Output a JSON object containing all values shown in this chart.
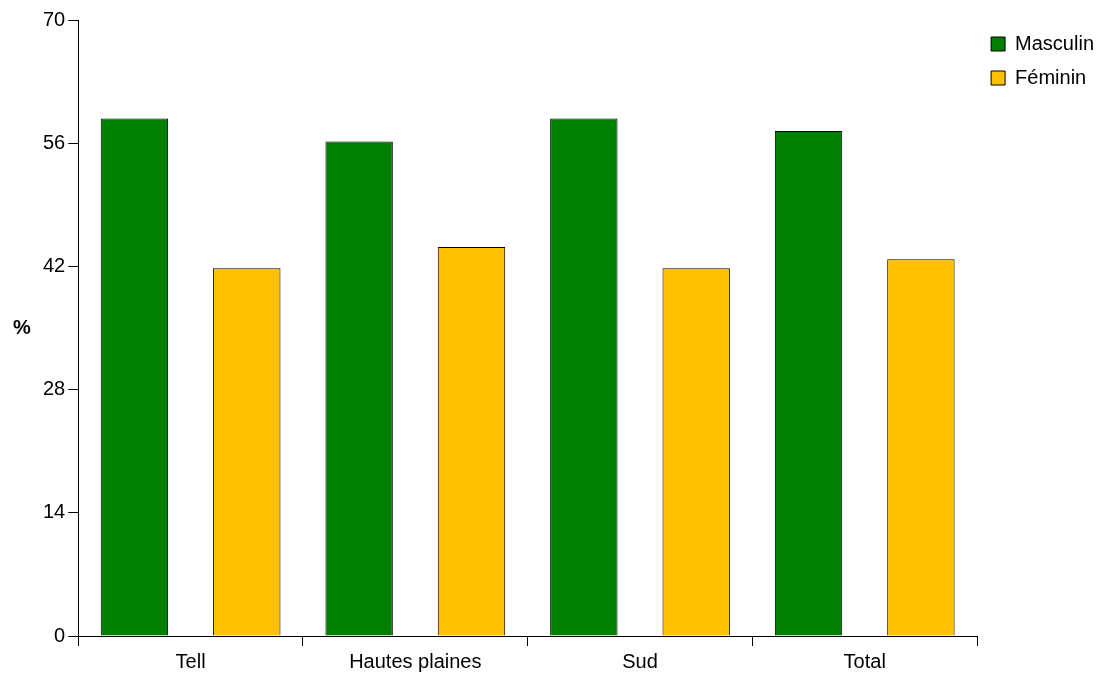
{
  "chart_data": {
    "type": "bar",
    "ylabel": "%",
    "categories": [
      "Tell",
      "Hautes plaines",
      "Sud",
      "Total"
    ],
    "series": [
      {
        "name": "Masculin",
        "color": "#008000",
        "values": [
          58.8,
          56.2,
          58.8,
          57.4
        ]
      },
      {
        "name": "Féminin",
        "color": "#ffc000",
        "values": [
          41.8,
          44.2,
          41.8,
          42.8
        ]
      }
    ],
    "ylim": [
      0,
      70
    ],
    "yticks": [
      0,
      14,
      28,
      42,
      56,
      70
    ],
    "grid": false,
    "legend": "top right"
  }
}
